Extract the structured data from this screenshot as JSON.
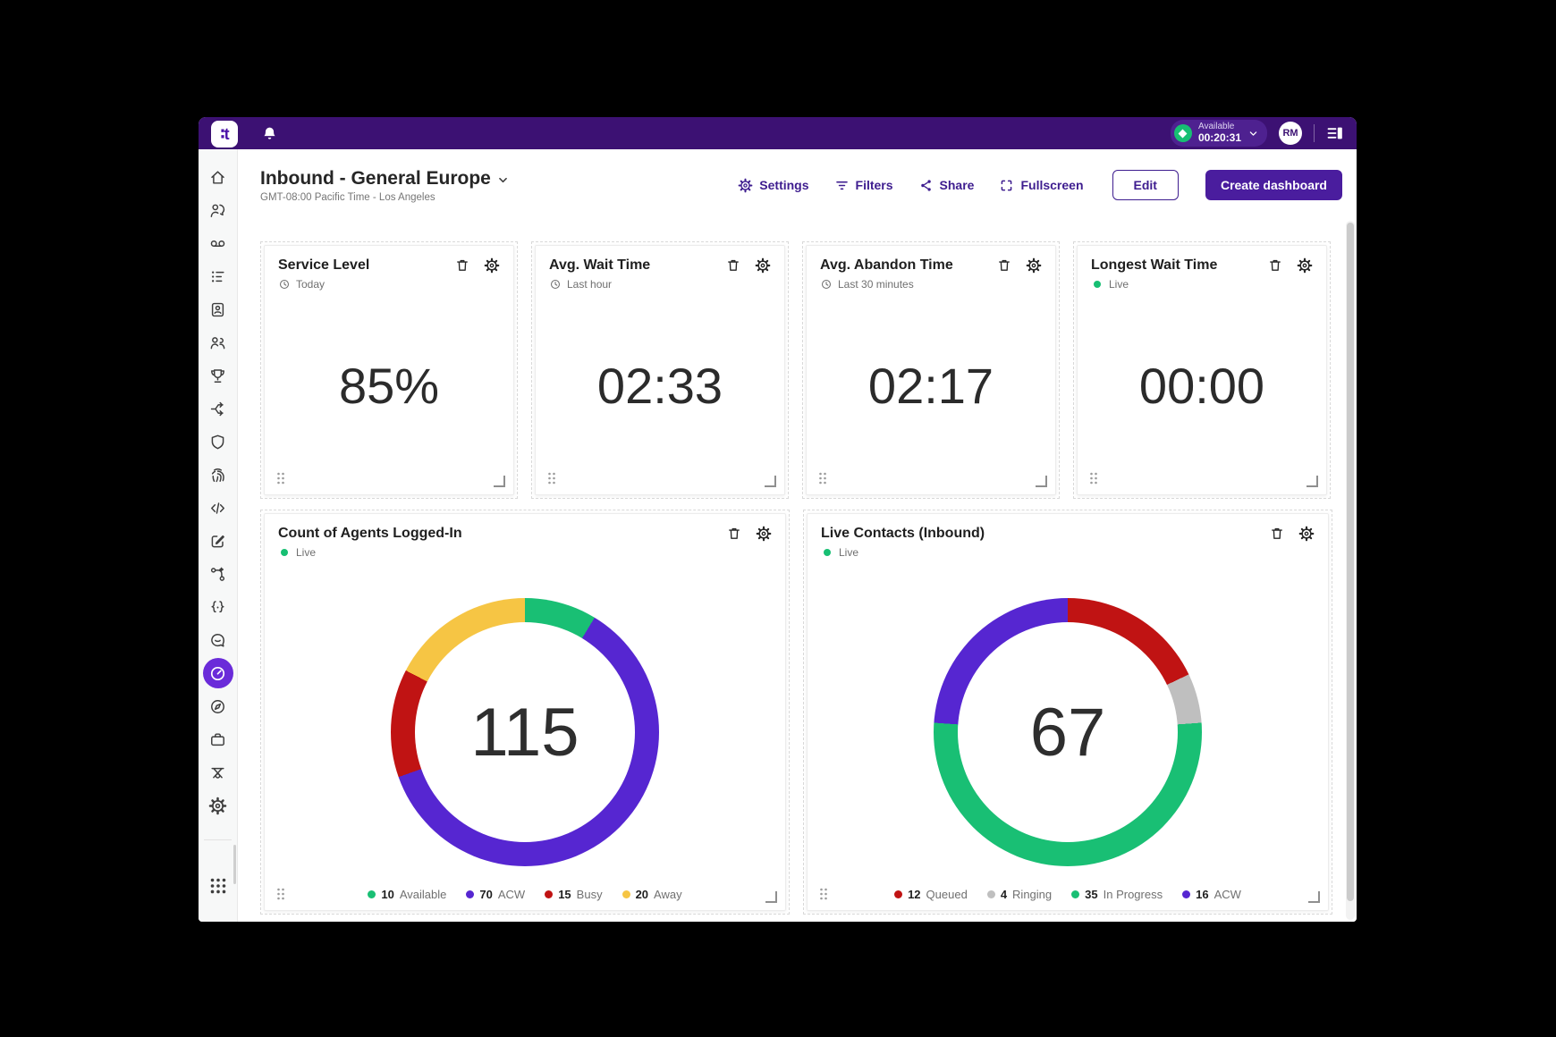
{
  "topbar": {
    "logo_text": "∶t",
    "status": {
      "label": "Available",
      "timer": "00:20:31"
    },
    "avatar_initials": "RM"
  },
  "header": {
    "title": "Inbound - General Europe",
    "subtitle": "GMT-08:00 Pacific Time - Los Angeles",
    "actions": [
      {
        "label": "Settings",
        "icon": "gear"
      },
      {
        "label": "Filters",
        "icon": "filter"
      },
      {
        "label": "Share",
        "icon": "share"
      },
      {
        "label": "Fullscreen",
        "icon": "fullscreen"
      }
    ],
    "edit_button": "Edit",
    "create_button": "Create dashboard"
  },
  "sidebar": {
    "items": [
      {
        "icon": "home"
      },
      {
        "icon": "conversations"
      },
      {
        "icon": "voicemail"
      },
      {
        "icon": "queues"
      },
      {
        "icon": "contacts"
      },
      {
        "icon": "teams"
      },
      {
        "icon": "gamification"
      },
      {
        "icon": "routing"
      },
      {
        "icon": "security"
      },
      {
        "icon": "identity"
      },
      {
        "icon": "developer"
      },
      {
        "icon": "compose"
      },
      {
        "icon": "workflows"
      },
      {
        "icon": "ai-builder"
      },
      {
        "icon": "feedback"
      },
      {
        "icon": "dashboards"
      },
      {
        "icon": "explore"
      },
      {
        "icon": "workspace"
      },
      {
        "icon": "training"
      },
      {
        "icon": "settings"
      }
    ],
    "active_icon": "dashboards",
    "bottom_icon": "apps"
  },
  "kpi_cards": [
    {
      "title": "Service Level",
      "timeframe": "Today",
      "timeframe_icon": "clock",
      "value": "85%"
    },
    {
      "title": "Avg. Wait Time",
      "timeframe": "Last hour",
      "timeframe_icon": "clock",
      "value": "02:33"
    },
    {
      "title": "Avg. Abandon Time",
      "timeframe": "Last 30 minutes",
      "timeframe_icon": "clock",
      "value": "02:17"
    },
    {
      "title": "Longest Wait Time",
      "timeframe": "Live",
      "timeframe_icon": "live-dot",
      "value": "00:00"
    }
  ],
  "chart_data": [
    {
      "type": "pie",
      "title": "Count of Agents Logged-In",
      "timeframe": "Live",
      "total": 115,
      "legend_position": "bottom",
      "segments": [
        {
          "label": "Available",
          "value": 10,
          "color": "#19bf74"
        },
        {
          "label": "ACW",
          "value": 70,
          "color": "#5626d1"
        },
        {
          "label": "Busy",
          "value": 15,
          "color": "#c01313"
        },
        {
          "label": "Away",
          "value": 20,
          "color": "#f6c544"
        }
      ]
    },
    {
      "type": "pie",
      "title": "Live Contacts (Inbound)",
      "timeframe": "Live",
      "total": 67,
      "legend_position": "bottom",
      "segments": [
        {
          "label": "Queued",
          "value": 12,
          "color": "#c01313"
        },
        {
          "label": "Ringing",
          "value": 4,
          "color": "#bfbfbf"
        },
        {
          "label": "In Progress",
          "value": 35,
          "color": "#19bf74"
        },
        {
          "label": "ACW",
          "value": 16,
          "color": "#5626d1"
        }
      ]
    }
  ],
  "colors": {
    "topbar": "#3c1173",
    "accent_purple": "#4a1d9e",
    "active_sidebar": "#6a2bd9",
    "live_green": "#17bf73",
    "link_purple": "#3e1d8f"
  }
}
